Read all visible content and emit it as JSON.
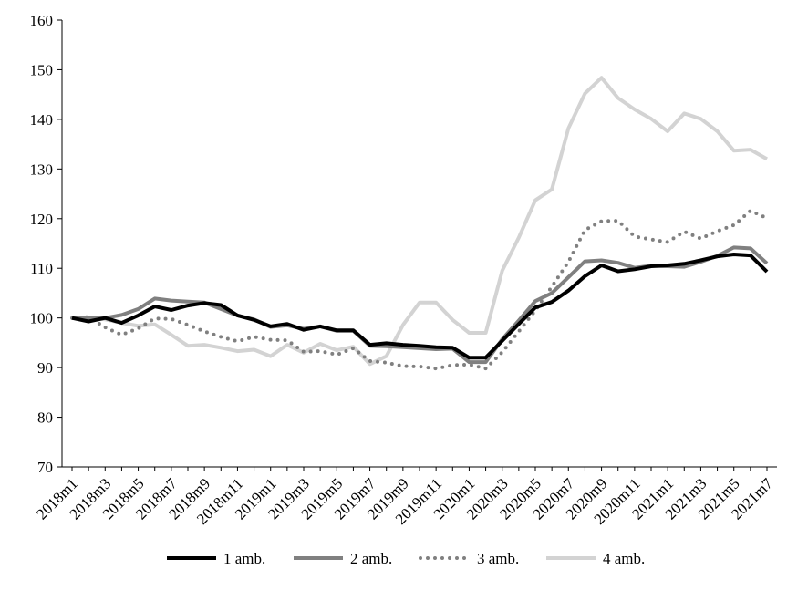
{
  "chart_data": {
    "type": "line",
    "title": "",
    "xlabel": "",
    "ylabel": "",
    "ylim": [
      70,
      160
    ],
    "yticks": [
      70,
      80,
      90,
      100,
      110,
      120,
      130,
      140,
      150,
      160
    ],
    "grid": false,
    "legend_position": "bottom",
    "categories": [
      "2018m1",
      "2018m2",
      "2018m3",
      "2018m4",
      "2018m5",
      "2018m6",
      "2018m7",
      "2018m8",
      "2018m9",
      "2018m10",
      "2018m11",
      "2018m12",
      "2019m1",
      "2019m2",
      "2019m3",
      "2019m4",
      "2019m5",
      "2019m6",
      "2019m7",
      "2019m8",
      "2019m9",
      "2019m10",
      "2019m11",
      "2019m12",
      "2020m1",
      "2020m2",
      "2020m3",
      "2020m4",
      "2020m5",
      "2020m6",
      "2020m7",
      "2020m8",
      "2020m9",
      "2020m10",
      "2020m11",
      "2020m12",
      "2021m1",
      "2021m2",
      "2021m3",
      "2021m4",
      "2021m5",
      "2021m6",
      "2021m7"
    ],
    "tick_labels": [
      "2018m1",
      "2018m3",
      "2018m5",
      "2018m7",
      "2018m9",
      "2018m11",
      "2019m1",
      "2019m3",
      "2019m5",
      "2019m7",
      "2019m9",
      "2019m11",
      "2020m1",
      "2020m3",
      "2020m5",
      "2020m7",
      "2020m9",
      "2020m11",
      "2021m1",
      "2021m3",
      "2021m5",
      "2021m7"
    ],
    "series": [
      {
        "name": "1 amb.",
        "color": "#000000",
        "style": "solid",
        "values": [
          100,
          99.3,
          100,
          99,
          100.5,
          102.3,
          101.6,
          102.5,
          103,
          102.6,
          100.5,
          99.6,
          98.3,
          98.8,
          97.6,
          98.3,
          97.5,
          97.5,
          94.6,
          94.9,
          94.6,
          94.4,
          94.1,
          94,
          92,
          92,
          95.4,
          98.8,
          102.1,
          103.2,
          105.5,
          108.4,
          110.6,
          109.4,
          109.8,
          110.4,
          110.6,
          110.9,
          111.6,
          112.4,
          112.8,
          112.6,
          109.3
        ]
      },
      {
        "name": "2 amb.",
        "color": "#808080",
        "style": "solid",
        "values": [
          100,
          100,
          100,
          100.6,
          101.8,
          103.9,
          103.5,
          103.3,
          103.1,
          101.8,
          100.5,
          99.7,
          98.2,
          98.5,
          97.8,
          98.3,
          97.4,
          97.4,
          94.4,
          94.3,
          94.1,
          93.9,
          93.7,
          93.8,
          91.1,
          91.1,
          95.7,
          99.5,
          103.4,
          105,
          108.2,
          111.4,
          111.6,
          111.1,
          110.1,
          110.5,
          110.4,
          110.3,
          111.3,
          112.5,
          114.2,
          114,
          111
        ]
      },
      {
        "name": "3 amb.",
        "color": "#808080",
        "style": "dotted",
        "values": [
          100,
          100.2,
          98.1,
          96.6,
          97.9,
          99.9,
          99.8,
          98.6,
          97.3,
          96.2,
          95.3,
          96.2,
          95.6,
          95.5,
          93.2,
          93.3,
          92.6,
          93.9,
          91.3,
          91,
          90.3,
          90.2,
          89.8,
          90.5,
          90.6,
          89.8,
          93.1,
          97.3,
          101.5,
          106.3,
          111.3,
          117.7,
          119.5,
          119.6,
          116.4,
          115.8,
          115.3,
          117.4,
          116,
          117.5,
          118.7,
          121.6,
          120.1
        ]
      },
      {
        "name": "4 amb.",
        "color": "#d3d3d3",
        "style": "solid",
        "values": [
          100,
          100.1,
          99.7,
          99,
          98.4,
          98.7,
          96.6,
          94.4,
          94.6,
          94,
          93.3,
          93.6,
          92.3,
          94.6,
          93,
          94.8,
          93.5,
          94.2,
          90.7,
          92.3,
          98.6,
          103.1,
          103.1,
          99.6,
          97,
          97,
          109.5,
          116.2,
          123.7,
          125.9,
          138.2,
          145.2,
          148.4,
          144.3,
          142,
          140.1,
          137.6,
          141.2,
          140.1,
          137.6,
          133.7,
          133.9,
          132
        ]
      }
    ]
  }
}
